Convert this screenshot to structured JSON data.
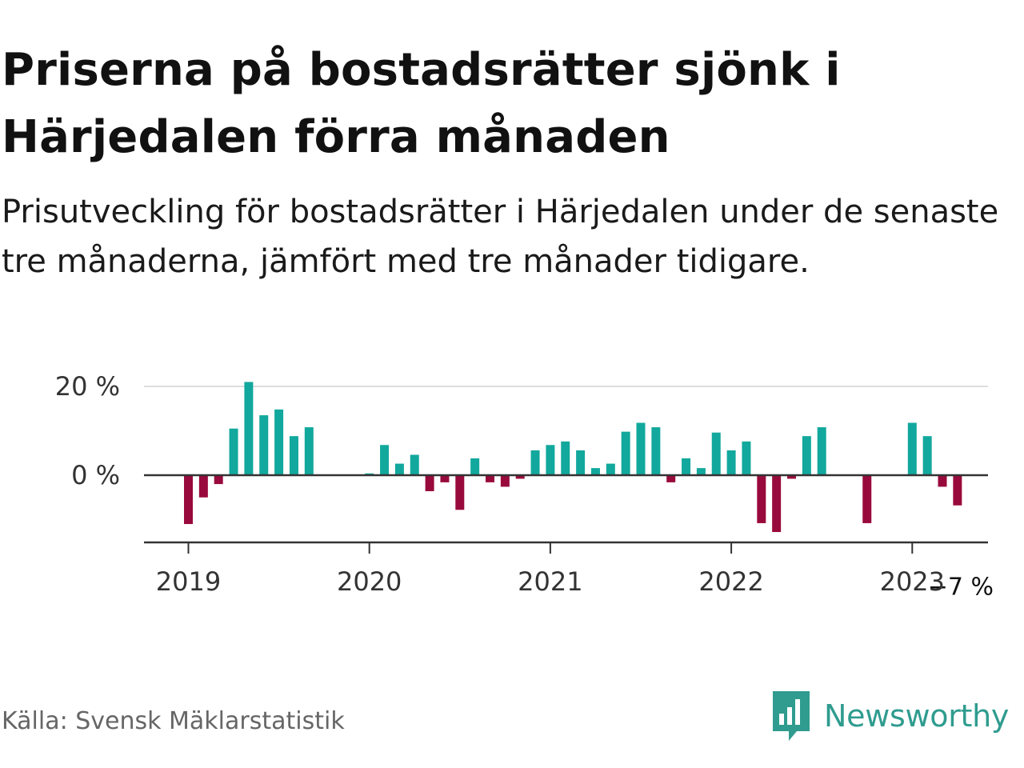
{
  "header": {
    "title": "Priserna på bostadsrätter sjönk i Härjedalen förra månaden",
    "subtitle": "Prisutveckling för bostadsrätter i Härjedalen under de senaste tre månaderna, jämfört med tre månader tidigare."
  },
  "footer": {
    "source": "Källa: Svensk Mäklarstatistik",
    "brand": "Newsworthy",
    "brand_icon": "newsworthy-logo-icon"
  },
  "colors": {
    "positive": "#12a89d",
    "negative": "#990a3c",
    "brand": "#2f9c8f",
    "gridline": "#dddddd",
    "zero_line": "#333333"
  },
  "chart_data": {
    "type": "bar",
    "title": "",
    "xlabel": "",
    "ylabel": "",
    "ylim": [
      -15,
      22
    ],
    "y_ticks": [
      {
        "value": 0,
        "label": "0 %"
      },
      {
        "value": 20,
        "label": "20 %"
      }
    ],
    "x_ticks": [
      {
        "value": "2019-01",
        "label": "2019"
      },
      {
        "value": "2020-01",
        "label": "2020"
      },
      {
        "value": "2021-01",
        "label": "2021"
      },
      {
        "value": "2022-01",
        "label": "2022"
      },
      {
        "value": "2023-01",
        "label": "2023"
      }
    ],
    "grid": "horizontal",
    "annotation": {
      "x": "2023-04",
      "label": "−7 %"
    },
    "categories": [
      "2019-01",
      "2019-02",
      "2019-03",
      "2019-04",
      "2019-05",
      "2019-06",
      "2019-07",
      "2019-08",
      "2019-09",
      "2019-10",
      "2019-11",
      "2019-12",
      "2020-01",
      "2020-02",
      "2020-03",
      "2020-04",
      "2020-05",
      "2020-06",
      "2020-07",
      "2020-08",
      "2020-09",
      "2020-10",
      "2020-11",
      "2020-12",
      "2021-01",
      "2021-02",
      "2021-03",
      "2021-04",
      "2021-05",
      "2021-06",
      "2021-07",
      "2021-08",
      "2021-09",
      "2021-10",
      "2021-11",
      "2021-12",
      "2022-01",
      "2022-02",
      "2022-03",
      "2022-04",
      "2022-05",
      "2022-06",
      "2022-07",
      "2022-08",
      "2022-09",
      "2022-10",
      "2022-11",
      "2022-12",
      "2023-01",
      "2023-02",
      "2023-03",
      "2023-04"
    ],
    "values": [
      -11,
      -5,
      -2,
      10.5,
      21,
      13.5,
      14.8,
      8.8,
      10.8,
      null,
      null,
      null,
      0.4,
      6.8,
      2.6,
      4.6,
      -3.6,
      -1.6,
      -7.8,
      3.8,
      -1.6,
      -2.6,
      -0.8,
      5.6,
      6.8,
      7.6,
      5.6,
      1.6,
      2.6,
      9.8,
      11.8,
      10.8,
      -1.6,
      3.8,
      1.6,
      9.6,
      5.6,
      7.6,
      -10.8,
      -12.8,
      -0.8,
      8.8,
      10.8,
      null,
      null,
      -10.8,
      null,
      null,
      11.8,
      8.8,
      -2.6,
      -6.8
    ]
  }
}
